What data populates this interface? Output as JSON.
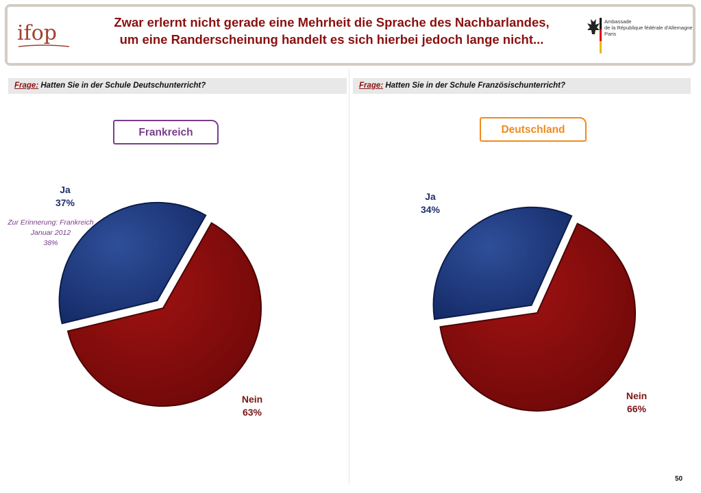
{
  "header": {
    "logo_text": "ifop",
    "title_line1": "Zwar erlernt  nicht gerade eine Mehrheit die Sprache des Nachbarlandes,",
    "title_line2": "um eine Randerscheinung handelt es sich hierbei jedoch lange nicht...",
    "embassy_line1": "Ambassade",
    "embassy_line2": "de la République fédérale d'Allemagne",
    "embassy_line3": "Paris"
  },
  "left": {
    "frage_label": "Frage:",
    "question": " Hatten Sie in der Schule Deutschunterricht?",
    "country": "Frankreich",
    "ja_label": "Ja",
    "ja_value": "37%",
    "nein_label": "Nein",
    "nein_value": "63%",
    "reminder_line1": "Zur Erinnerung: Frankreich",
    "reminder_line2": "Januar 2012",
    "reminder_line3": "38%"
  },
  "right": {
    "frage_label": "Frage:",
    "question": " Hatten Sie in der Schule Französischunterricht?",
    "country": "Deutschland",
    "ja_label": "Ja",
    "ja_value": "34%",
    "nein_label": "Nein",
    "nein_value": "66%"
  },
  "page_number": "50",
  "colors": {
    "ja": "#1f3a7a",
    "nein": "#8c0a0a",
    "frankreich": "#7a3d8a",
    "deutschland": "#f08a1c",
    "title": "#8a1010"
  },
  "chart_data": [
    {
      "type": "pie",
      "title": "Frankreich",
      "question": "Hatten Sie in der Schule Deutschunterricht?",
      "categories": [
        "Ja",
        "Nein"
      ],
      "values": [
        37,
        63
      ],
      "exploded": "Ja"
    },
    {
      "type": "pie",
      "title": "Deutschland",
      "question": "Hatten Sie in der Schule Französischunterricht?",
      "categories": [
        "Ja",
        "Nein"
      ],
      "values": [
        34,
        66
      ],
      "exploded": "Ja"
    }
  ]
}
